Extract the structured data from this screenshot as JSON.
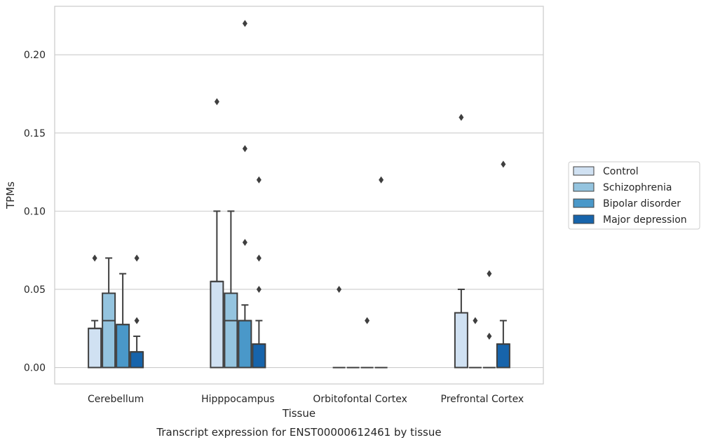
{
  "chart_data": {
    "type": "boxplot",
    "caption": "Transcript expression for ENST00000612461 by tissue",
    "xlabel": "Tissue",
    "ylabel": "TPMs",
    "ylim": [
      -0.0105,
      0.231
    ],
    "yticks": [
      0.0,
      0.05,
      0.1,
      0.15,
      0.2
    ],
    "ytick_labels": [
      "0.00",
      "0.05",
      "0.10",
      "0.15",
      "0.20"
    ],
    "grid": "horizontal",
    "legend_position": "right",
    "categories": [
      "Cerebellum",
      "Hipppocampus",
      "Orbitofontal Cortex",
      "Prefrontal Cortex"
    ],
    "series": [
      {
        "name": "Control",
        "color": "#d0e1f2",
        "boxes": [
          {
            "q1": 0.0,
            "median": 0.025,
            "q3": 0.025,
            "whislo": 0.0,
            "whishi": 0.03,
            "fliers": [
              0.07
            ]
          },
          {
            "q1": 0.0,
            "median": 0.055,
            "q3": 0.055,
            "whislo": 0.0,
            "whishi": 0.1,
            "fliers": [
              0.17
            ]
          },
          {
            "q1": 0.0,
            "median": 0.0,
            "q3": 0.0,
            "whislo": 0.0,
            "whishi": 0.0,
            "fliers": [
              0.05
            ]
          },
          {
            "q1": 0.0,
            "median": 0.035,
            "q3": 0.035,
            "whislo": 0.0,
            "whishi": 0.05,
            "fliers": [
              0.16
            ]
          }
        ]
      },
      {
        "name": "Schizophrenia",
        "color": "#94c4df",
        "boxes": [
          {
            "q1": 0.0,
            "median": 0.03,
            "q3": 0.0475,
            "whislo": 0.0,
            "whishi": 0.07,
            "fliers": []
          },
          {
            "q1": 0.0,
            "median": 0.03,
            "q3": 0.0475,
            "whislo": 0.0,
            "whishi": 0.1,
            "fliers": []
          },
          {
            "q1": 0.0,
            "median": 0.0,
            "q3": 0.0,
            "whislo": 0.0,
            "whishi": 0.0,
            "fliers": []
          },
          {
            "q1": 0.0,
            "median": 0.0,
            "q3": 0.0,
            "whislo": 0.0,
            "whishi": 0.0,
            "fliers": [
              0.03
            ]
          }
        ]
      },
      {
        "name": "Bipolar disorder",
        "color": "#4a98c9",
        "boxes": [
          {
            "q1": 0.0,
            "median": 0.0275,
            "q3": 0.0275,
            "whislo": 0.0,
            "whishi": 0.06,
            "fliers": []
          },
          {
            "q1": 0.0,
            "median": 0.03,
            "q3": 0.03,
            "whislo": 0.0,
            "whishi": 0.04,
            "fliers": [
              0.22,
              0.14,
              0.08
            ]
          },
          {
            "q1": 0.0,
            "median": 0.0,
            "q3": 0.0,
            "whislo": 0.0,
            "whishi": 0.0,
            "fliers": [
              0.03
            ]
          },
          {
            "q1": 0.0,
            "median": 0.0,
            "q3": 0.0,
            "whislo": 0.0,
            "whishi": 0.0,
            "fliers": [
              0.06,
              0.02
            ]
          }
        ]
      },
      {
        "name": "Major depression",
        "color": "#1764ab",
        "boxes": [
          {
            "q1": 0.0,
            "median": 0.01,
            "q3": 0.01,
            "whislo": 0.0,
            "whishi": 0.02,
            "fliers": [
              0.07,
              0.03
            ]
          },
          {
            "q1": 0.0,
            "median": 0.015,
            "q3": 0.015,
            "whislo": 0.0,
            "whishi": 0.03,
            "fliers": [
              0.12,
              0.07,
              0.05
            ]
          },
          {
            "q1": 0.0,
            "median": 0.0,
            "q3": 0.0,
            "whislo": 0.0,
            "whishi": 0.0,
            "fliers": [
              0.12
            ]
          },
          {
            "q1": 0.0,
            "median": 0.015,
            "q3": 0.015,
            "whislo": 0.0,
            "whishi": 0.03,
            "fliers": [
              0.13
            ]
          }
        ]
      }
    ]
  }
}
